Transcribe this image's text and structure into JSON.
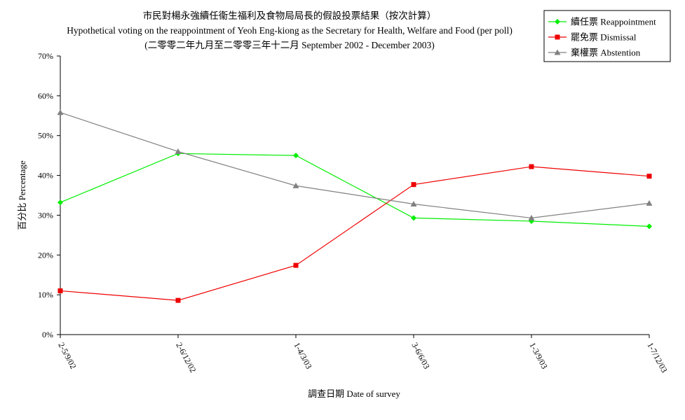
{
  "chart_data": {
    "type": "line",
    "title": "市民對楊永強續任衞生福利及食物局局長的假設投票結果（按次計算）",
    "subtitle": "Hypothetical voting on the reappointment of Yeoh Eng-kiong as the Secretary for Health, Welfare and Food (per poll)",
    "subtitle2": "(二零零二年九月至二零零三年十二月 September 2002 - December 2003)",
    "xlabel": "調查日期 Date of survey",
    "ylabel": "百分比 Percentage",
    "categories": [
      "2-5/9/02",
      "2-6/12/02",
      "1-4/3/03",
      "3-6/6/03",
      "1-3/9/03",
      "1-7/12/03"
    ],
    "ylim": [
      0,
      70
    ],
    "yticks": [
      "0%",
      "10%",
      "20%",
      "30%",
      "40%",
      "50%",
      "60%",
      "70%"
    ],
    "grid": false,
    "legend_position": "top-right",
    "series": [
      {
        "name": "續任票 Reappointment",
        "color": "#00ee00",
        "marker": "diamond",
        "values": [
          33.2,
          45.5,
          45.0,
          29.3,
          28.5,
          27.2
        ]
      },
      {
        "name": "罷免票 Dismissal",
        "color": "#ee0000",
        "marker": "square",
        "values": [
          11.0,
          8.6,
          17.4,
          37.7,
          42.2,
          39.8
        ]
      },
      {
        "name": "棄權票 Abstention",
        "color": "#808080",
        "marker": "triangle",
        "values": [
          55.8,
          46.0,
          37.4,
          32.8,
          29.3,
          33.0
        ]
      }
    ]
  }
}
